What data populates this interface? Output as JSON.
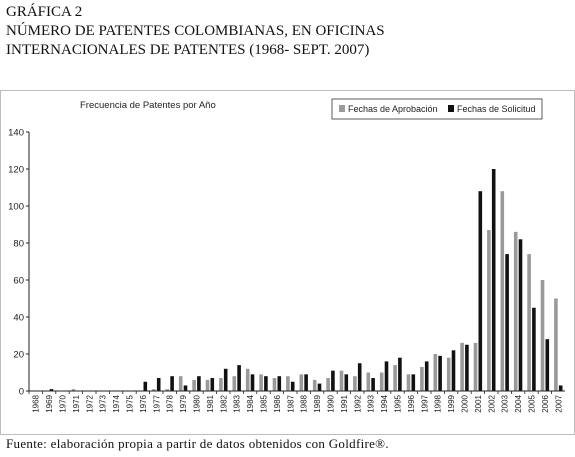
{
  "figure": {
    "number": "GRÁFICA 2",
    "title_line1": "NÚMERO DE PATENTES COLOMBIANAS, EN OFICINAS",
    "title_line2": "INTERNACIONALES DE PATENTES (1968- SEPT. 2007)",
    "source": "Fuente: elaboración propia a partir de datos obtenidos con Goldfire®."
  },
  "chart_data": {
    "type": "bar",
    "title": "Frecuencia de Patentes por Año",
    "xlabel": "",
    "ylabel": "",
    "ylim": [
      0,
      140
    ],
    "yticks": [
      0,
      20,
      40,
      60,
      80,
      100,
      120,
      140
    ],
    "grid": false,
    "legend_position": "top-right",
    "categories": [
      "1968",
      "1969",
      "1970",
      "1971",
      "1972",
      "1973",
      "1974",
      "1975",
      "1976",
      "1977",
      "1978",
      "1979",
      "1980",
      "1981",
      "1982",
      "1983",
      "1984",
      "1985",
      "1986",
      "1987",
      "1988",
      "1989",
      "1990",
      "1991",
      "1992",
      "1993",
      "1994",
      "1995",
      "1996",
      "1997",
      "1998",
      "1999",
      "2000",
      "2001",
      "2002",
      "2003",
      "2004",
      "2005",
      "2006",
      "2007"
    ],
    "series": [
      {
        "name": "Fechas de Aprobación",
        "color": "#9a9a9a",
        "values": [
          0,
          0,
          0,
          1,
          0,
          0,
          0,
          0,
          0,
          1,
          1,
          8,
          6,
          6,
          7,
          8,
          12,
          9,
          7,
          8,
          9,
          6,
          7,
          11,
          8,
          10,
          10,
          14,
          9,
          13,
          20,
          18,
          26,
          26,
          87,
          108,
          86,
          74,
          60,
          50
        ]
      },
      {
        "name": "Fechas de Solicitud",
        "color": "#111111",
        "values": [
          0,
          1,
          0,
          0,
          0,
          0,
          0,
          0,
          5,
          7,
          8,
          3,
          8,
          7,
          12,
          14,
          9,
          8,
          8,
          5,
          9,
          4,
          11,
          9,
          15,
          7,
          16,
          18,
          9,
          16,
          19,
          22,
          25,
          108,
          120,
          74,
          82,
          45,
          28,
          3
        ]
      }
    ]
  }
}
